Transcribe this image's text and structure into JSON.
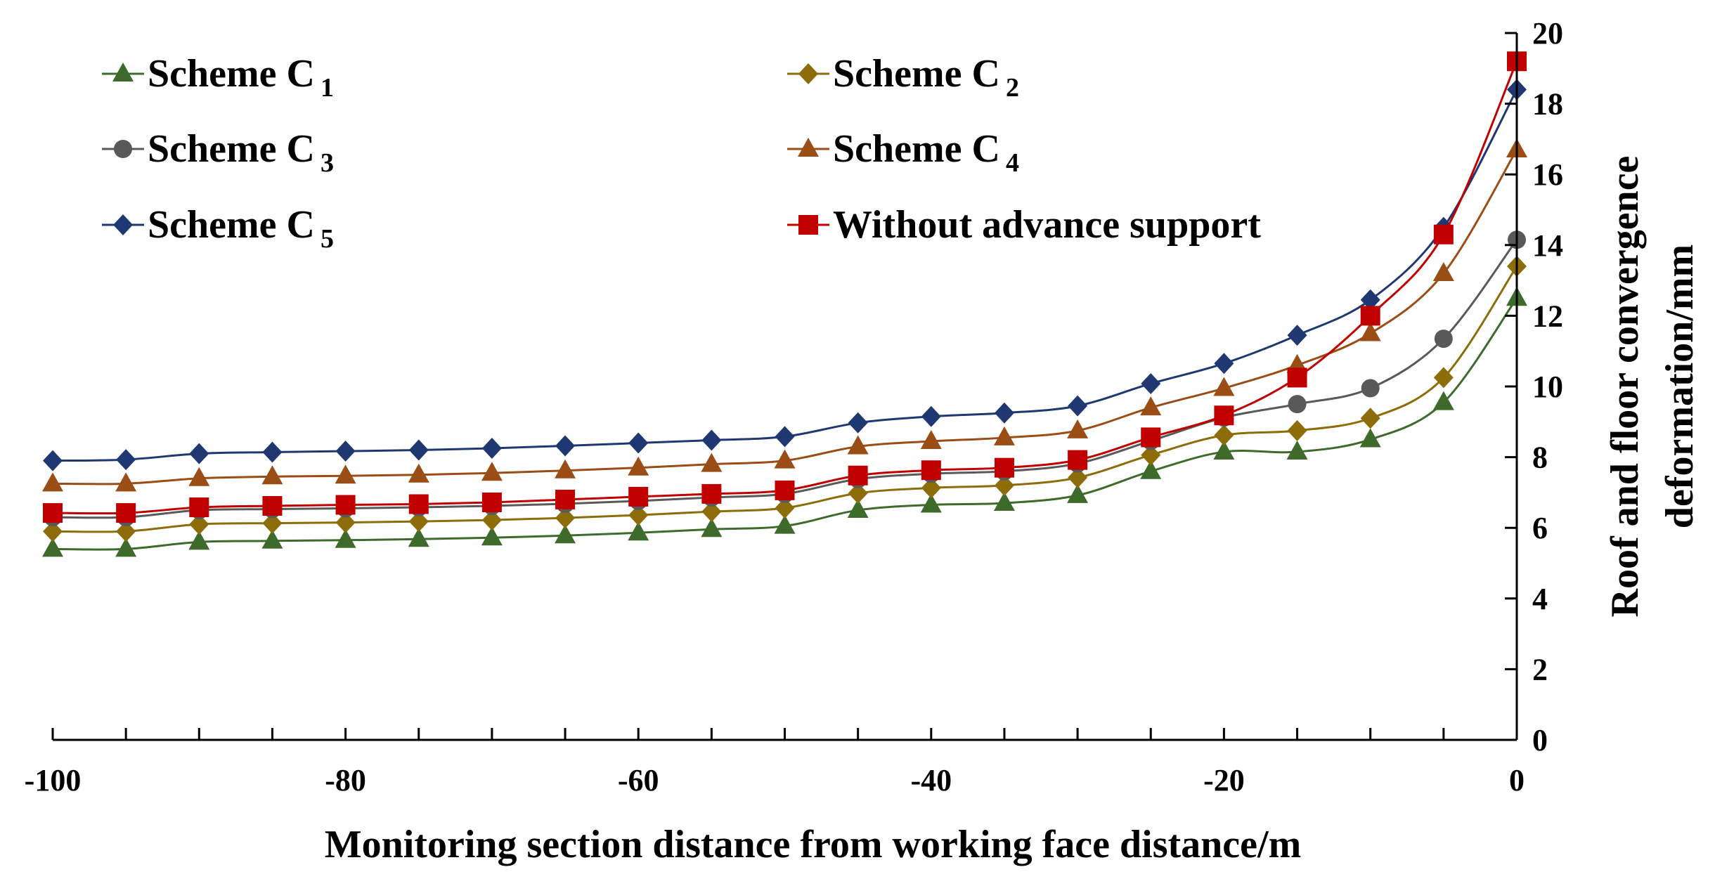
{
  "chart_data": {
    "type": "line",
    "xlabel": "Monitoring section distance from working face distance/m",
    "ylabel_line1": "Roof and floor convergence",
    "ylabel_line2": "deformation/mm",
    "xlim": [
      -100,
      0
    ],
    "ylim": [
      0,
      20
    ],
    "x_ticks": [
      -100,
      -80,
      -60,
      -40,
      -20,
      0
    ],
    "y_ticks": [
      0,
      2,
      4,
      6,
      8,
      10,
      12,
      14,
      16,
      18,
      20
    ],
    "x_minor_step": 5,
    "y_axis_position": "right",
    "x": [
      -100,
      -95,
      -90,
      -85,
      -80,
      -75,
      -70,
      -65,
      -60,
      -55,
      -50,
      -45,
      -40,
      -35,
      -30,
      -25,
      -20,
      -15,
      -10,
      -5,
      0
    ],
    "series": [
      {
        "name": "Scheme C",
        "sub": "1",
        "marker": "triangle",
        "color": "#3e6b2c",
        "values": [
          5.4,
          5.4,
          5.6,
          5.63,
          5.65,
          5.68,
          5.72,
          5.78,
          5.86,
          5.96,
          6.05,
          6.5,
          6.65,
          6.7,
          6.92,
          7.6,
          8.15,
          8.15,
          8.5,
          9.55,
          12.5
        ]
      },
      {
        "name": "Scheme C",
        "sub": "2",
        "marker": "diamond",
        "color": "#8c6d0a",
        "values": [
          5.9,
          5.9,
          6.1,
          6.13,
          6.15,
          6.18,
          6.22,
          6.28,
          6.36,
          6.46,
          6.56,
          6.98,
          7.13,
          7.2,
          7.42,
          8.06,
          8.62,
          8.75,
          9.1,
          10.25,
          13.4
        ]
      },
      {
        "name": "Scheme C",
        "sub": "3",
        "marker": "circle",
        "color": "#595959",
        "values": [
          6.3,
          6.3,
          6.5,
          6.53,
          6.55,
          6.58,
          6.62,
          6.68,
          6.76,
          6.86,
          6.96,
          7.38,
          7.53,
          7.6,
          7.82,
          8.46,
          9.12,
          9.5,
          9.95,
          11.35,
          14.15
        ]
      },
      {
        "name": "Scheme C",
        "sub": "4",
        "marker": "triangle",
        "color": "#9b4d16",
        "values": [
          7.25,
          7.25,
          7.4,
          7.45,
          7.47,
          7.5,
          7.55,
          7.62,
          7.7,
          7.8,
          7.9,
          8.3,
          8.45,
          8.55,
          8.75,
          9.4,
          9.95,
          10.6,
          11.5,
          13.2,
          16.7
        ]
      },
      {
        "name": "Scheme C",
        "sub": "5",
        "marker": "diamond",
        "color": "#1f3872",
        "values": [
          7.9,
          7.93,
          8.1,
          8.14,
          8.17,
          8.2,
          8.25,
          8.32,
          8.4,
          8.48,
          8.58,
          8.97,
          9.15,
          9.25,
          9.45,
          10.08,
          10.65,
          11.45,
          12.45,
          14.5,
          18.4
        ]
      },
      {
        "name": "Without advance support",
        "sub": "",
        "marker": "square",
        "color": "#c00000",
        "values": [
          6.42,
          6.42,
          6.58,
          6.62,
          6.65,
          6.67,
          6.72,
          6.8,
          6.88,
          6.96,
          7.06,
          7.48,
          7.63,
          7.7,
          7.92,
          8.56,
          9.18,
          10.25,
          12.0,
          14.3,
          19.2
        ]
      }
    ]
  }
}
